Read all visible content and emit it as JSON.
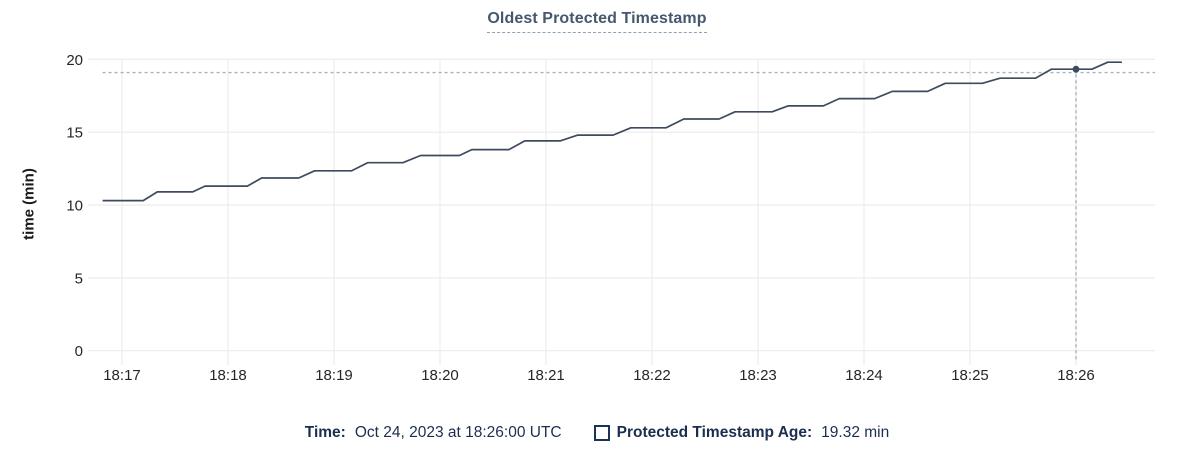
{
  "chart_data": {
    "type": "line",
    "title": "Oldest Protected Timestamp",
    "xlabel": "",
    "ylabel": "time (min)",
    "ylim": [
      0,
      20
    ],
    "yticks": [
      0,
      5,
      10,
      15,
      20
    ],
    "xticks": [
      "18:17",
      "18:18",
      "18:19",
      "18:20",
      "18:21",
      "18:22",
      "18:23",
      "18:24",
      "18:25",
      "18:26"
    ],
    "grid": true,
    "legend_position": "bottom",
    "series": [
      {
        "name": "Protected Timestamp Age",
        "unit": "min",
        "points_t_v": [
          [
            -11,
            10.3
          ],
          [
            12,
            10.3
          ],
          [
            20,
            10.9
          ],
          [
            40,
            10.9
          ],
          [
            47,
            11.3
          ],
          [
            71,
            11.3
          ],
          [
            79,
            11.85
          ],
          [
            100,
            11.85
          ],
          [
            109,
            12.35
          ],
          [
            130,
            12.35
          ],
          [
            139,
            12.9
          ],
          [
            159,
            12.9
          ],
          [
            169,
            13.4
          ],
          [
            191,
            13.4
          ],
          [
            198,
            13.8
          ],
          [
            219,
            13.8
          ],
          [
            228,
            14.4
          ],
          [
            248,
            14.4
          ],
          [
            258,
            14.8
          ],
          [
            278,
            14.8
          ],
          [
            288,
            15.3
          ],
          [
            308,
            15.3
          ],
          [
            318,
            15.9
          ],
          [
            338,
            15.9
          ],
          [
            347,
            16.4
          ],
          [
            368,
            16.4
          ],
          [
            377,
            16.8
          ],
          [
            397,
            16.8
          ],
          [
            406,
            17.3
          ],
          [
            426,
            17.3
          ],
          [
            436,
            17.8
          ],
          [
            456,
            17.8
          ],
          [
            466,
            18.35
          ],
          [
            487,
            18.35
          ],
          [
            497,
            18.7
          ],
          [
            517,
            18.7
          ],
          [
            526,
            19.32
          ],
          [
            549,
            19.32
          ],
          [
            558,
            19.8
          ],
          [
            566,
            19.8
          ]
        ],
        "t_unit": "seconds since 18:17:00"
      }
    ],
    "crosshair": {
      "xtick": "18:26",
      "time": "18:26:00",
      "value": 19.32
    }
  },
  "legend": {
    "time_label": "Time:",
    "time_value": "Oct 24, 2023 at 18:26:00 UTC",
    "series_label": "Protected Timestamp Age:",
    "series_value": "19.32 min"
  },
  "colors": {
    "line": "#3e4b5e",
    "crosshair": "#a3b4c1",
    "gridline": "#ececec",
    "axis_text": "#262626",
    "title_text": "#46586e",
    "legend_text": "#1b2e50"
  }
}
